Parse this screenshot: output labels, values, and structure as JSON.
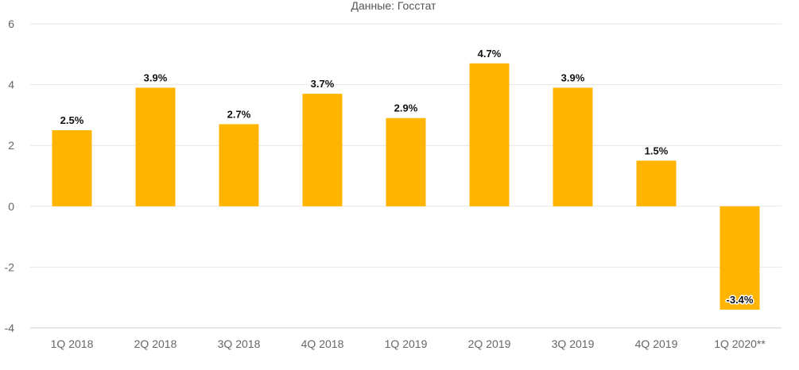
{
  "chart_data": {
    "type": "bar",
    "subtitle": "Данные: Госстат",
    "categories": [
      "1Q 2018",
      "2Q 2018",
      "3Q 2018",
      "4Q 2018",
      "1Q 2019",
      "2Q 2019",
      "3Q 2019",
      "4Q 2019",
      "1Q 2020**"
    ],
    "values": [
      2.5,
      3.9,
      2.7,
      3.7,
      2.9,
      4.7,
      3.9,
      1.5,
      -3.4
    ],
    "data_labels": [
      "2.5%",
      "3.9%",
      "2.7%",
      "3.7%",
      "2.9%",
      "4.7%",
      "3.9%",
      "1.5%",
      "-3.4%"
    ],
    "yticks": [
      6,
      4,
      2,
      0,
      -2,
      -4
    ],
    "ytick_labels": [
      "6",
      "4",
      "2",
      "0",
      "-2",
      "-4"
    ],
    "ylim": [
      -4,
      6
    ],
    "grid": true,
    "legend": "none",
    "bar_color": "#FFB400"
  }
}
